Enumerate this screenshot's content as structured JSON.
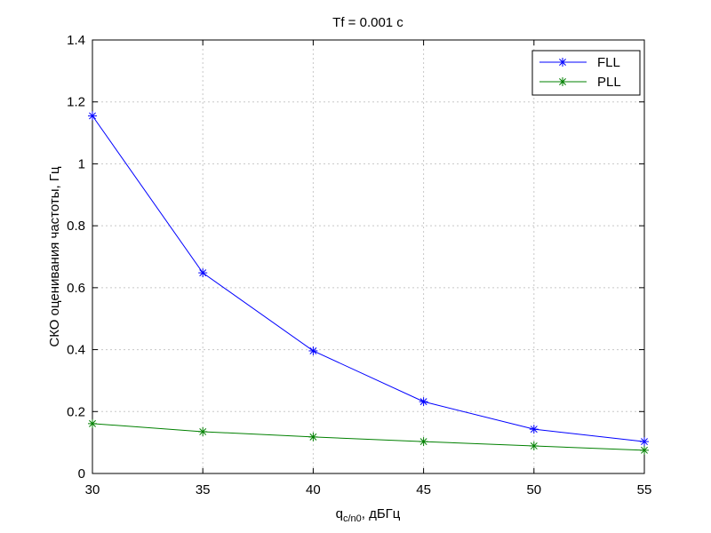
{
  "chart_data": {
    "type": "line",
    "title": "Tf = 0.001 c",
    "xlabel": {
      "base": "q",
      "subscript": "c/n0",
      "suffix": ", дБГц"
    },
    "ylabel": "СКО оценивания частоты, Гц",
    "x": [
      30,
      35,
      40,
      45,
      50,
      55
    ],
    "series": [
      {
        "name": "FLL",
        "color": "#0000ff",
        "values": [
          1.155,
          0.648,
          0.396,
          0.232,
          0.143,
          0.103
        ]
      },
      {
        "name": "PLL",
        "color": "#008000",
        "values": [
          0.161,
          0.135,
          0.118,
          0.103,
          0.089,
          0.075
        ]
      }
    ],
    "xlim": [
      30,
      55
    ],
    "xticks": [
      30,
      35,
      40,
      45,
      50,
      55
    ],
    "ylim": [
      0,
      1.4
    ],
    "yticks": [
      0,
      0.2,
      0.4,
      0.6,
      0.8,
      1,
      1.2,
      1.4
    ],
    "grid": true,
    "legend": "upper-right",
    "marker": "star"
  }
}
